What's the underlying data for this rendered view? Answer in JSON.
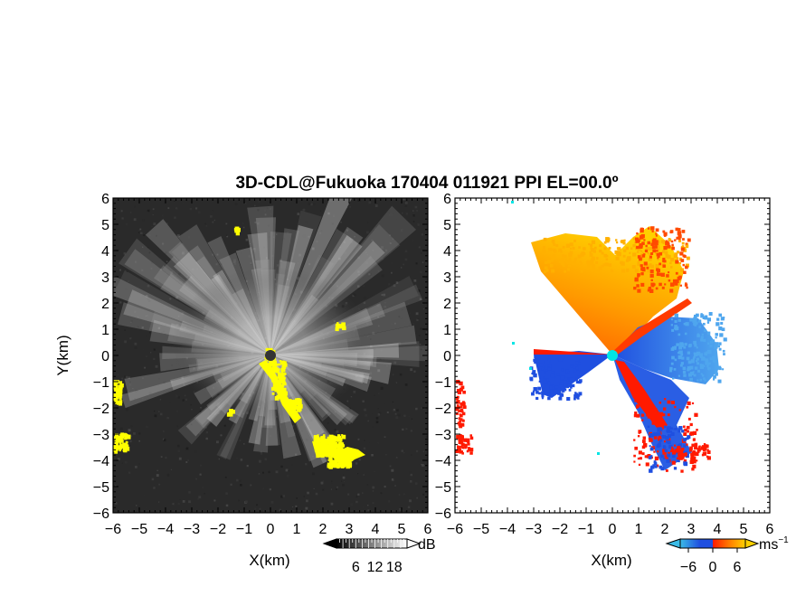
{
  "chart_data": [
    {
      "type": "heatmap",
      "title": "3D-CDL@Fukuoka 170404 011921 PPI EL=00.0º",
      "panel": "reflectivity",
      "xlabel": "X(km)",
      "ylabel": "Y(km)",
      "xlim": [
        -6,
        6
      ],
      "ylim": [
        -6,
        6
      ],
      "xticks": [
        "−6",
        "−5",
        "−4",
        "−3",
        "−2",
        "−1",
        "0",
        "1",
        "2",
        "3",
        "4",
        "5",
        "6"
      ],
      "yticks": [
        "−6",
        "−5",
        "−4",
        "−3",
        "−2",
        "−1",
        "0",
        "1",
        "2",
        "3",
        "4",
        "5",
        "6"
      ],
      "colorbar": {
        "unit": "dB",
        "ticks": [
          "6",
          "12",
          "18"
        ],
        "range": [
          0,
          22
        ],
        "colors": [
          "#000000",
          "#ffffff"
        ]
      },
      "overlay_color": "#ffff00",
      "background_color": "#2a2a2a"
    },
    {
      "type": "heatmap",
      "panel": "radial velocity",
      "xlabel": "X(km)",
      "xlim": [
        -6,
        6
      ],
      "ylim": [
        -6,
        6
      ],
      "xticks": [
        "−6",
        "−5",
        "−4",
        "−3",
        "−2",
        "−1",
        "0",
        "1",
        "2",
        "3",
        "4",
        "5",
        "6"
      ],
      "yticks": [
        "−6",
        "−5",
        "−4",
        "−3",
        "−2",
        "−1",
        "0",
        "1",
        "2",
        "3",
        "4",
        "5",
        "6"
      ],
      "colorbar": {
        "unit": "ms",
        "unit_exp": "−1",
        "ticks": [
          "−6",
          "0",
          "6"
        ],
        "range": [
          -8,
          8
        ],
        "colors": [
          "#3bbbe6",
          "#1f4fe0",
          "#ff1a00",
          "#ffd000"
        ]
      },
      "marker_color": "#00e5e5"
    }
  ]
}
